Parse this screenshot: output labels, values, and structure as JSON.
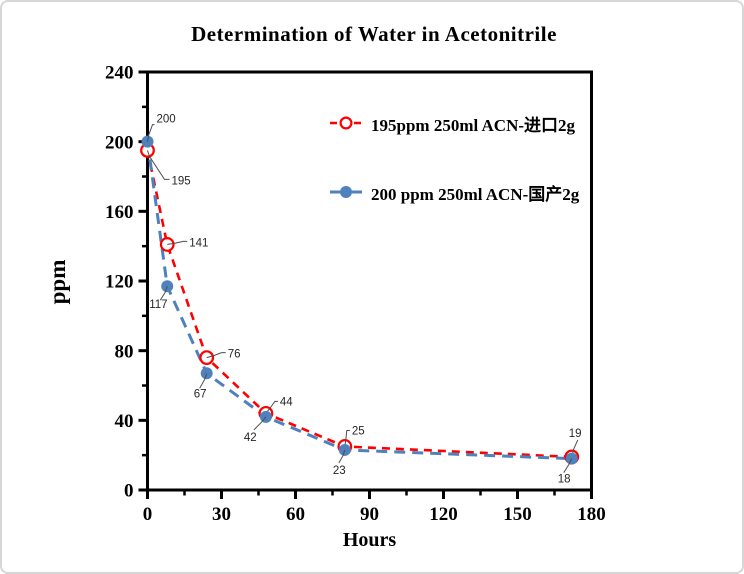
{
  "chart_data": {
    "type": "line",
    "title": "Determination of Water in Acetonitrile",
    "xlabel": "Hours",
    "ylabel": "ppm",
    "x": [
      0,
      8,
      24,
      48,
      80,
      172
    ],
    "series": [
      {
        "name": "195ppm  250ml ACN-进口2g",
        "color": "#ff0000",
        "marker": "open-circle",
        "line_style": "dashed",
        "values": [
          195,
          141,
          76,
          44,
          25,
          19
        ]
      },
      {
        "name": "200 ppm 250ml ACN-国产2g",
        "color": "#4f81bd",
        "marker": "filled-circle",
        "line_style": "dashed",
        "values": [
          200,
          117,
          67,
          42,
          23,
          18
        ]
      }
    ],
    "xlim": [
      0,
      180
    ],
    "ylim": [
      0,
      240
    ],
    "x_major_ticks": [
      0,
      30,
      60,
      90,
      120,
      150,
      180
    ],
    "x_minor_ticks": [
      15,
      45,
      75,
      105,
      135,
      165
    ],
    "y_major_ticks": [
      0,
      40,
      80,
      120,
      160,
      200,
      240
    ],
    "y_minor_ticks": [
      20,
      60,
      100,
      140,
      180,
      220
    ],
    "grid": false,
    "legend_position": "inside-top-right",
    "point_labels_shown": true,
    "colors": {
      "axis": "#000000",
      "leader_line": "#4d4d4d",
      "point_label_text": "#262626",
      "frame_border": "#d6d6d6"
    }
  }
}
